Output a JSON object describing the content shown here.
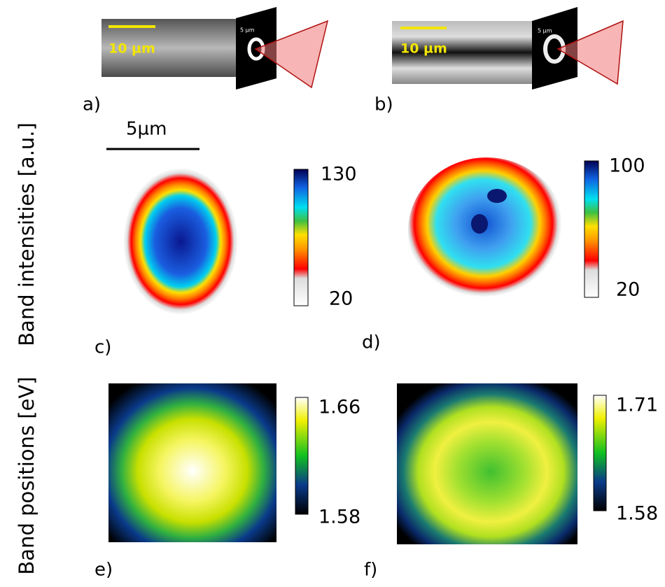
{
  "panels": {
    "a": {
      "label": "a)",
      "scale_text": "10 µm",
      "inset_scale_text": "5 µm"
    },
    "b": {
      "label": "b)",
      "scale_text": "10 µm",
      "inset_scale_text": "5 µm"
    },
    "scale_bar_text": "5µm",
    "c": {
      "label": "c)",
      "colorbar_max": 130,
      "colorbar_min": 20
    },
    "d": {
      "label": "d)",
      "colorbar_max": 100,
      "colorbar_min": 20
    },
    "e": {
      "label": "e)",
      "colorbar_max": 1.66,
      "colorbar_min": 1.58
    },
    "f": {
      "label": "f)",
      "colorbar_max": 1.71,
      "colorbar_min": 1.58
    }
  },
  "side_labels": {
    "intensities": "Band intensities [a.u.]",
    "positions": "Band positions [eV]"
  }
}
